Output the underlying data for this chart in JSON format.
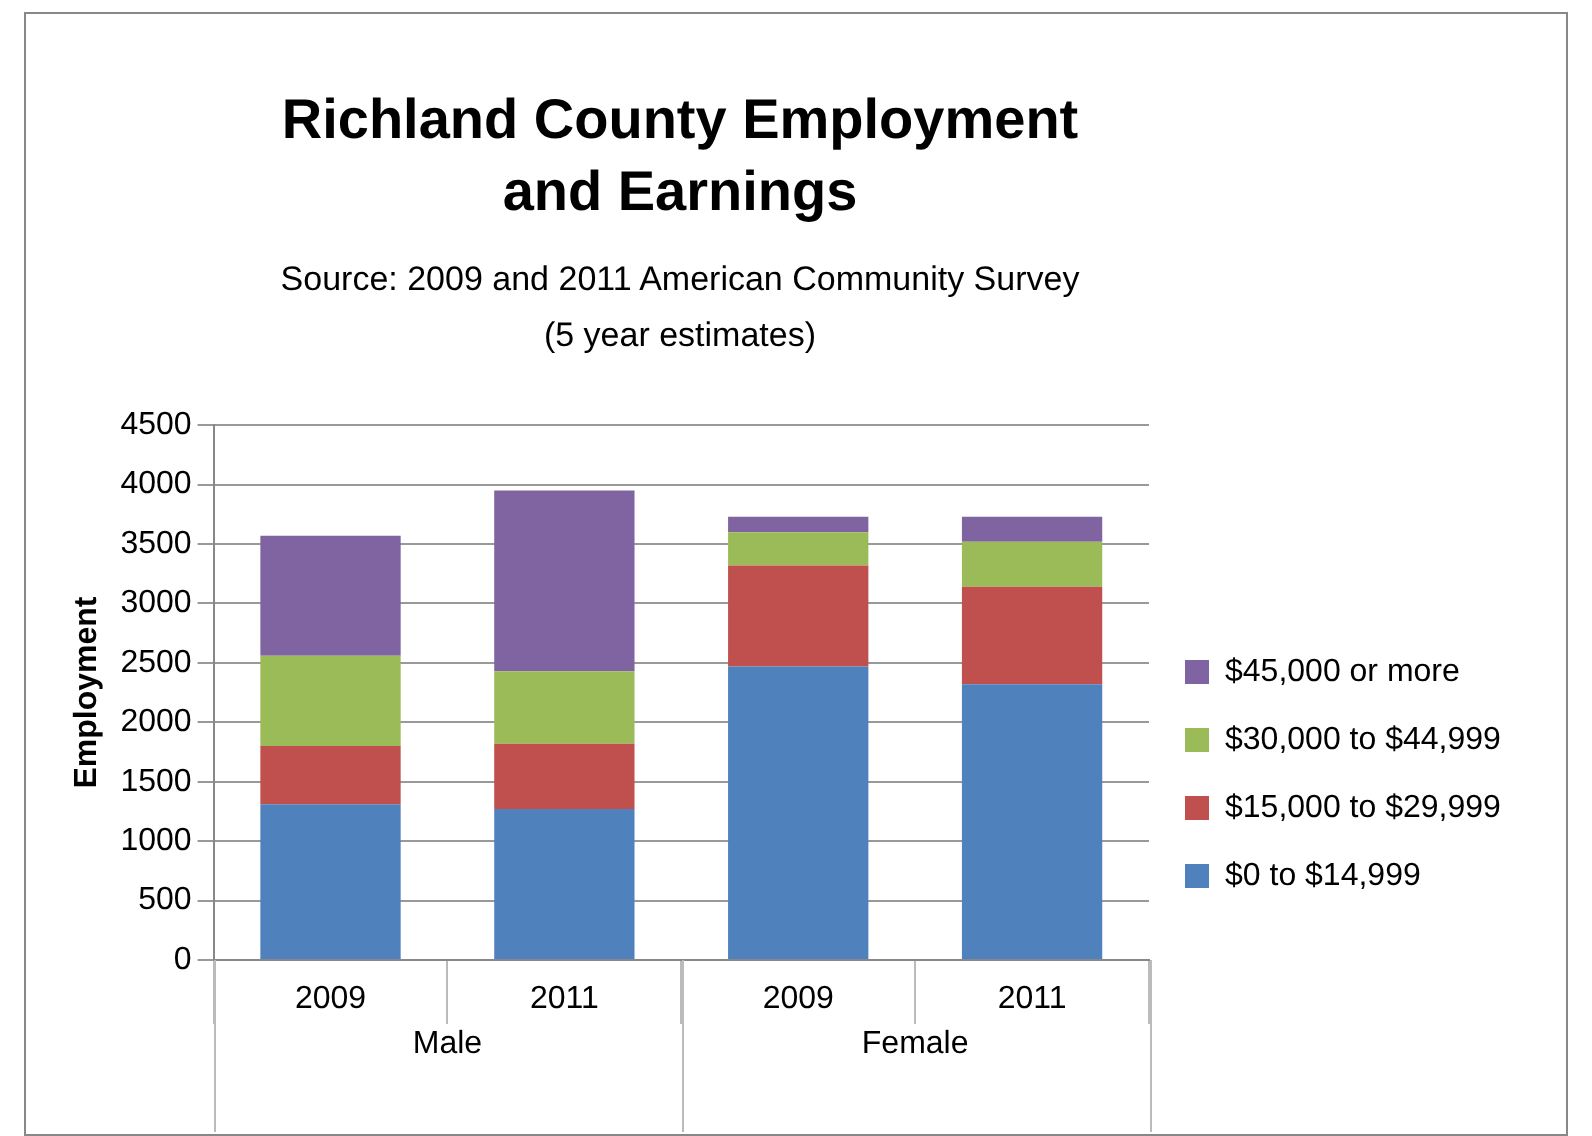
{
  "chart_data": {
    "type": "bar",
    "title": "Richland County Employment and Earnings",
    "subtitle": "Source: 2009 and 2011 American Community Survey (5 year estimates)",
    "ylabel": "Employment",
    "categories": [
      "2009",
      "2011",
      "2009",
      "2011"
    ],
    "annotations": [
      "Male",
      "Female"
    ],
    "stacked": true,
    "ylim": [
      0,
      4500
    ],
    "yticks": [
      0,
      500,
      1000,
      1500,
      2000,
      2500,
      3000,
      3500,
      4000,
      4500
    ],
    "grid": "y",
    "legend": "right",
    "series": [
      {
        "name": "$0 to $14,999",
        "color": "#4f81bd",
        "values": [
          1310,
          1270,
          2470,
          2320
        ]
      },
      {
        "name": "$15,000 to $29,999",
        "color": "#c0504d",
        "values": [
          490,
          550,
          850,
          820
        ]
      },
      {
        "name": "$30,000 to $44,999",
        "color": "#9bbb59",
        "values": [
          760,
          610,
          280,
          380
        ]
      },
      {
        "name": "$45,000 or more",
        "color": "#8064a2",
        "values": [
          1010,
          1520,
          130,
          210
        ]
      }
    ]
  }
}
